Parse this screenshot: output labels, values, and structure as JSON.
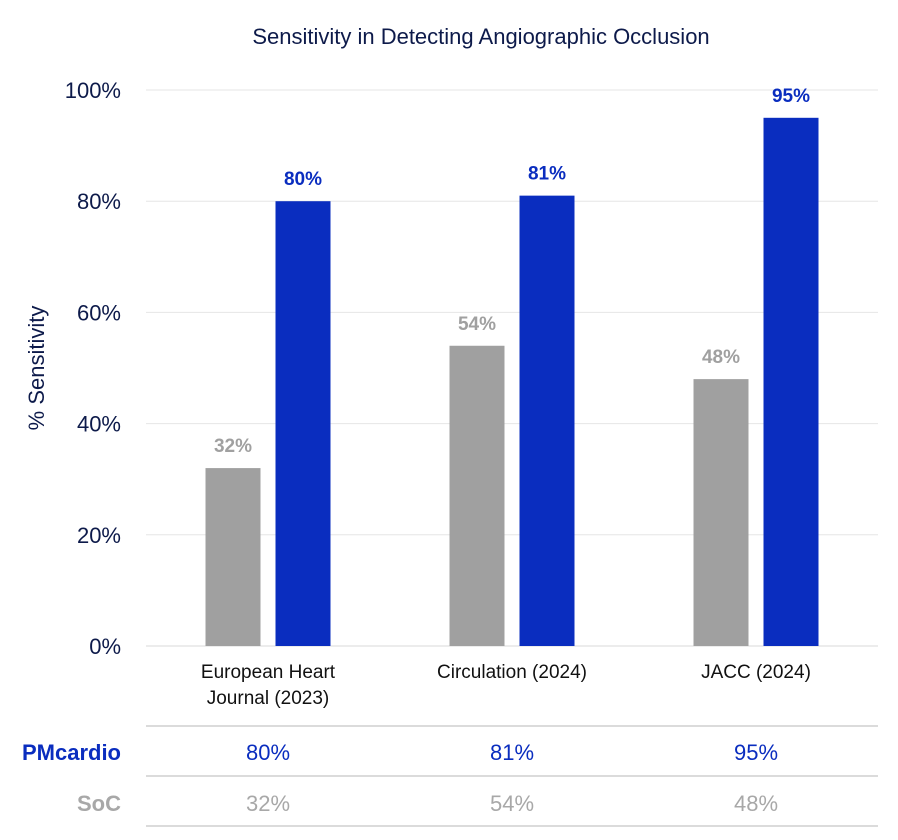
{
  "chart_data": {
    "type": "bar",
    "title": "Sensitivity in Detecting Angiographic Occlusion",
    "xlabel": "",
    "ylabel": "% Sensitivity",
    "ylim": [
      0,
      100
    ],
    "yticks": [
      "0%",
      "20%",
      "40%",
      "60%",
      "80%",
      "100%"
    ],
    "ytick_values": [
      0,
      20,
      40,
      60,
      80,
      100
    ],
    "grid": true,
    "categories": [
      [
        "European Heart",
        "Journal (2023)"
      ],
      [
        "Circulation (2024)"
      ],
      [
        "JACC (2024)"
      ]
    ],
    "series": [
      {
        "name": "SoC",
        "color": "#a0a0a0",
        "label_color": "#a0a0a0",
        "values": [
          32,
          54,
          48
        ],
        "labels": [
          "32%",
          "54%",
          "48%"
        ]
      },
      {
        "name": "PMcardio",
        "color": "#0a2dbf",
        "label_color": "#0a2dbf",
        "values": [
          80,
          81,
          95
        ],
        "labels": [
          "80%",
          "81%",
          "95%"
        ]
      }
    ]
  },
  "table": {
    "rows": [
      {
        "label": "PMcardio",
        "color": "#0a2dbf",
        "values": [
          "80%",
          "81%",
          "95%"
        ]
      },
      {
        "label": "SoC",
        "color": "#a8a8a8",
        "values": [
          "32%",
          "54%",
          "48%"
        ]
      }
    ]
  }
}
